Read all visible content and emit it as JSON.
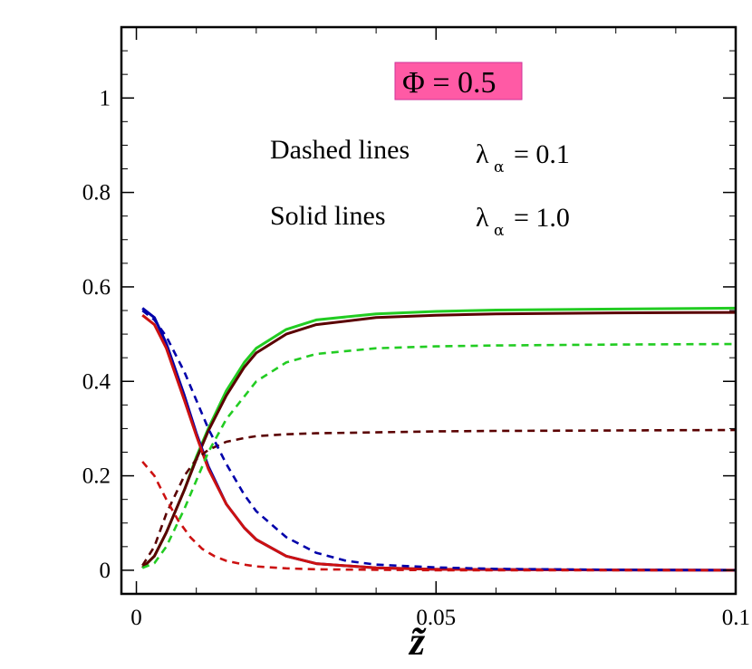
{
  "chart_data": {
    "type": "line",
    "xlabel": "z̃",
    "ylabel": "",
    "xlim": [
      -0.0025,
      0.1
    ],
    "ylim": [
      -0.05,
      1.15
    ],
    "x_ticks": [
      0,
      0.05,
      0.1
    ],
    "x_tick_labels": [
      "0",
      "0.05",
      "0.1"
    ],
    "y_ticks": [
      0,
      0.2,
      0.4,
      0.6,
      0.8,
      1
    ],
    "y_tick_labels": [
      "0",
      "0.2",
      "0.4",
      "0.6",
      "0.8",
      "1"
    ],
    "grid": false,
    "annotations": {
      "phi_box": {
        "text": "Φ = 0.5",
        "color": "#ff5aa5"
      },
      "dashed_label": "Dashed lines",
      "solid_label": "Solid lines",
      "lambda_symbol": "λ",
      "lambda_subscript": "α",
      "dashed_value": "=  0.1",
      "solid_value": "= 1.0"
    },
    "series": [
      {
        "color": "#22cc22",
        "style": "solid",
        "x": [
          0.001,
          0.003,
          0.005,
          0.008,
          0.01,
          0.012,
          0.015,
          0.018,
          0.02,
          0.025,
          0.03,
          0.04,
          0.05,
          0.06,
          0.08,
          0.1
        ],
        "y": [
          0.005,
          0.03,
          0.08,
          0.17,
          0.24,
          0.3,
          0.38,
          0.44,
          0.47,
          0.51,
          0.53,
          0.543,
          0.548,
          0.551,
          0.553,
          0.555
        ]
      },
      {
        "color": "#5a0000",
        "style": "solid",
        "x": [
          0.001,
          0.003,
          0.005,
          0.008,
          0.01,
          0.012,
          0.015,
          0.018,
          0.02,
          0.025,
          0.03,
          0.04,
          0.05,
          0.06,
          0.08,
          0.1
        ],
        "y": [
          0.005,
          0.03,
          0.08,
          0.17,
          0.235,
          0.295,
          0.37,
          0.43,
          0.46,
          0.5,
          0.52,
          0.535,
          0.54,
          0.543,
          0.545,
          0.546
        ]
      },
      {
        "color": "#0000aa",
        "style": "solid",
        "x": [
          0.001,
          0.003,
          0.005,
          0.008,
          0.01,
          0.012,
          0.015,
          0.018,
          0.02,
          0.025,
          0.03,
          0.04,
          0.05,
          0.07,
          0.1
        ],
        "y": [
          0.555,
          0.535,
          0.48,
          0.37,
          0.29,
          0.22,
          0.14,
          0.09,
          0.065,
          0.03,
          0.014,
          0.005,
          0.002,
          0.001,
          0.0
        ]
      },
      {
        "color": "#cc1111",
        "style": "solid",
        "x": [
          0.001,
          0.003,
          0.005,
          0.008,
          0.01,
          0.012,
          0.015,
          0.018,
          0.02,
          0.025,
          0.03,
          0.04,
          0.05,
          0.07,
          0.1
        ],
        "y": [
          0.54,
          0.52,
          0.47,
          0.36,
          0.285,
          0.215,
          0.14,
          0.09,
          0.065,
          0.03,
          0.014,
          0.005,
          0.002,
          0.001,
          0.0
        ]
      },
      {
        "color": "#22cc22",
        "style": "dashed",
        "x": [
          0.001,
          0.003,
          0.005,
          0.008,
          0.01,
          0.012,
          0.015,
          0.02,
          0.025,
          0.03,
          0.04,
          0.05,
          0.06,
          0.08,
          0.1
        ],
        "y": [
          0.005,
          0.015,
          0.05,
          0.13,
          0.19,
          0.25,
          0.32,
          0.4,
          0.44,
          0.458,
          0.47,
          0.474,
          0.476,
          0.478,
          0.479
        ]
      },
      {
        "color": "#5a0000",
        "style": "dashed",
        "x": [
          0.001,
          0.003,
          0.005,
          0.008,
          0.01,
          0.012,
          0.015,
          0.018,
          0.02,
          0.025,
          0.03,
          0.04,
          0.05,
          0.06,
          0.08,
          0.1
        ],
        "y": [
          0.01,
          0.05,
          0.12,
          0.2,
          0.235,
          0.255,
          0.272,
          0.28,
          0.284,
          0.288,
          0.29,
          0.292,
          0.294,
          0.295,
          0.296,
          0.297
        ]
      },
      {
        "color": "#0000aa",
        "style": "dashed",
        "x": [
          0.001,
          0.003,
          0.005,
          0.008,
          0.01,
          0.012,
          0.015,
          0.018,
          0.02,
          0.025,
          0.03,
          0.035,
          0.04,
          0.05,
          0.06,
          0.08,
          0.1
        ],
        "y": [
          0.55,
          0.53,
          0.495,
          0.42,
          0.36,
          0.3,
          0.225,
          0.16,
          0.125,
          0.07,
          0.037,
          0.02,
          0.012,
          0.006,
          0.003,
          0.001,
          0.0
        ]
      },
      {
        "color": "#cc1111",
        "style": "dashed",
        "x": [
          0.001,
          0.003,
          0.005,
          0.007,
          0.009,
          0.011,
          0.013,
          0.015,
          0.018,
          0.02,
          0.025,
          0.03,
          0.04,
          0.05,
          0.07,
          0.1
        ],
        "y": [
          0.23,
          0.2,
          0.15,
          0.105,
          0.07,
          0.045,
          0.03,
          0.02,
          0.012,
          0.008,
          0.004,
          0.002,
          0.001,
          0.0,
          0.0,
          0.0
        ]
      }
    ]
  }
}
